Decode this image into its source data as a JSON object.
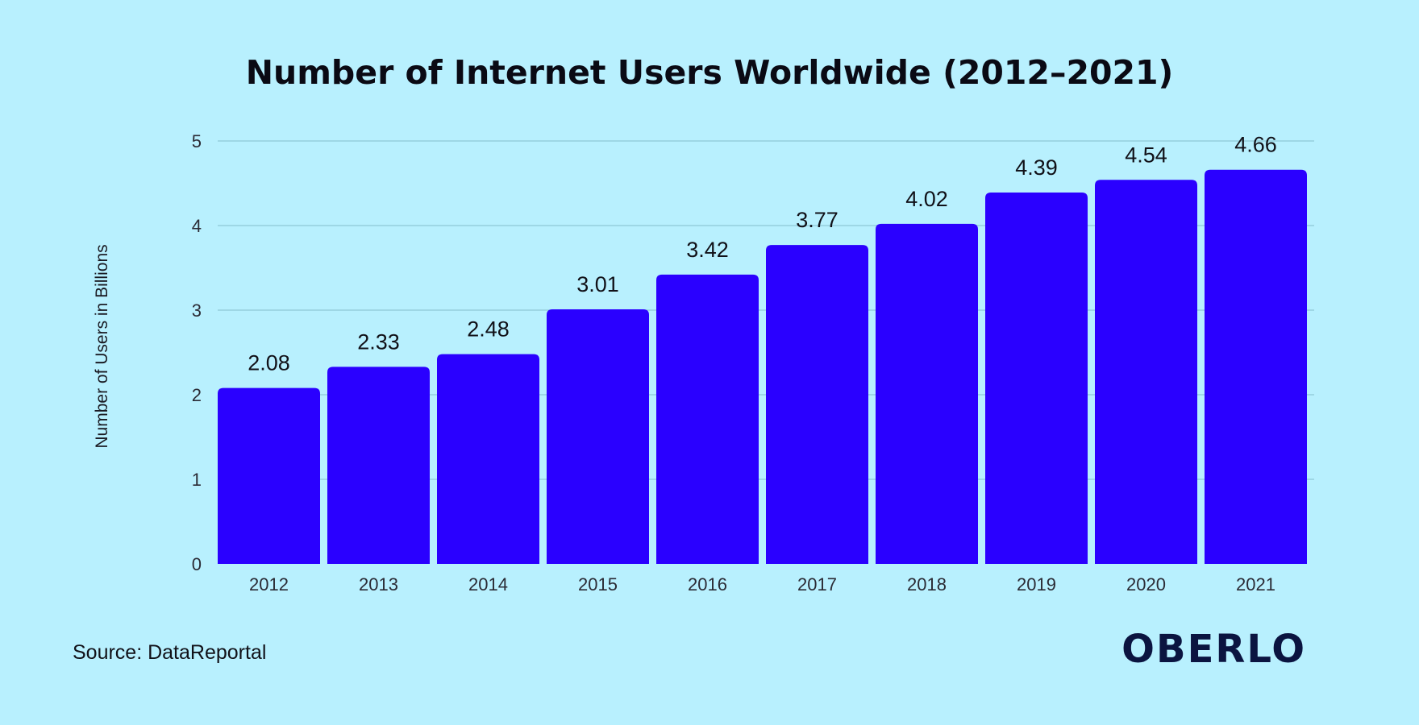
{
  "source_text": "Source: DataReportal",
  "brand": "OBERLO",
  "colors": {
    "background": "#b8f0fe",
    "bar": "#2a00ff",
    "grid": "#8fc8d6",
    "text": "#111118",
    "logo": "#0b1440"
  },
  "chart_data": {
    "type": "bar",
    "title": "Number of Internet Users Worldwide (2012–2021)",
    "xlabel": "",
    "ylabel": "Number of Users in Billions",
    "categories": [
      "2012",
      "2013",
      "2014",
      "2015",
      "2016",
      "2017",
      "2018",
      "2019",
      "2020",
      "2021"
    ],
    "values": [
      2.08,
      2.33,
      2.48,
      3.01,
      3.42,
      3.77,
      4.02,
      4.39,
      4.54,
      4.66
    ],
    "value_labels": [
      "2.08",
      "2.33",
      "2.48",
      "3.01",
      "3.42",
      "3.77",
      "4.02",
      "4.39",
      "4.54",
      "4.66"
    ],
    "ylim": [
      0,
      5
    ],
    "yticks": [
      "0",
      "1",
      "2",
      "3",
      "4",
      "5"
    ],
    "grid": true,
    "legend": "none"
  }
}
